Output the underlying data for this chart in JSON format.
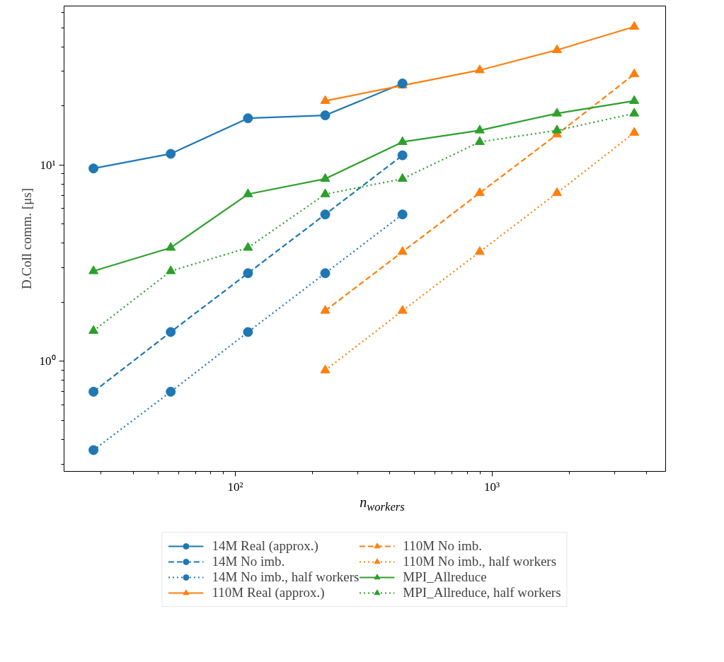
{
  "chart_data": {
    "type": "line",
    "xlabel": "n$_{workers}$",
    "ylabel": "D.Coll comm. [μs]",
    "log": "xy",
    "xlim": [
      21.5,
      4750
    ],
    "ylim": [
      0.275,
      64.5
    ],
    "xticks": [
      {
        "value": 100,
        "label": "10²"
      },
      {
        "value": 1000,
        "label": "10³"
      }
    ],
    "yticks": [
      {
        "value": 1,
        "label": "10⁰"
      },
      {
        "value": 10,
        "label": "10¹"
      }
    ],
    "grid": false,
    "legend": "bottom",
    "series": [
      {
        "name": "14M Real (approx.)",
        "color": "#1f77b4",
        "marker": "circle",
        "line_style": "solid",
        "x": [
          28,
          56,
          112,
          224,
          448
        ],
        "values": [
          9.6,
          11.4,
          17.3,
          17.9,
          26.0
        ]
      },
      {
        "name": "14M No imb.",
        "color": "#1f77b4",
        "marker": "circle",
        "line_style": "dashed",
        "x": [
          28,
          56,
          112,
          224,
          448
        ],
        "values": [
          0.7,
          1.41,
          2.81,
          5.6,
          11.2
        ]
      },
      {
        "name": "14M No imb., half workers",
        "color": "#1f77b4",
        "marker": "circle",
        "line_style": "dotted",
        "x": [
          28,
          56,
          112,
          224,
          448
        ],
        "values": [
          0.353,
          0.7,
          1.41,
          2.81,
          5.6
        ]
      },
      {
        "name": "110M Real (approx.)",
        "color": "#ff7f0e",
        "marker": "triangle",
        "line_style": "solid",
        "x": [
          224,
          448,
          896,
          1792,
          3584
        ],
        "values": [
          21.2,
          25.4,
          30.4,
          38.5,
          50.6
        ]
      },
      {
        "name": "110M No imb.",
        "color": "#ff7f0e",
        "marker": "triangle",
        "line_style": "dashed",
        "x": [
          224,
          448,
          896,
          1792,
          3584
        ],
        "values": [
          1.81,
          3.61,
          7.2,
          14.3,
          29.0
        ]
      },
      {
        "name": "110M No imb., half workers",
        "color": "#ff7f0e",
        "marker": "triangle",
        "line_style": "dotted",
        "x": [
          224,
          448,
          896,
          1792,
          3584
        ],
        "values": [
          0.9,
          1.81,
          3.61,
          7.2,
          14.6
        ]
      },
      {
        "name": "MPI_Allreduce",
        "color": "#2ca02c",
        "marker": "triangle",
        "line_style": "solid",
        "x": [
          28,
          56,
          112,
          224,
          448,
          896,
          1792,
          3584
        ],
        "values": [
          2.88,
          3.79,
          7.1,
          8.5,
          13.1,
          15.0,
          18.3,
          21.2
        ]
      },
      {
        "name": "MPI_Allreduce, half workers",
        "color": "#2ca02c",
        "marker": "triangle",
        "line_style": "dotted",
        "x": [
          28,
          56,
          112,
          224,
          448,
          896,
          1792,
          3584
        ],
        "values": [
          1.43,
          2.88,
          3.79,
          7.1,
          8.5,
          13.1,
          15.0,
          18.3
        ]
      }
    ]
  }
}
